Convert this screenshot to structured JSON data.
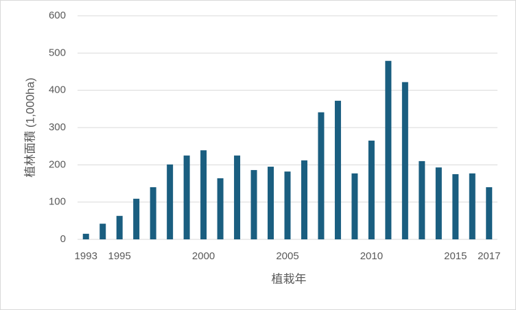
{
  "chart_data": {
    "type": "bar",
    "x_label": "植栽年",
    "y_label": "植林面積 (1,000ha)",
    "categories": [
      "1993",
      null,
      "1995",
      null,
      null,
      null,
      null,
      "2000",
      null,
      null,
      null,
      null,
      "2005",
      null,
      null,
      null,
      null,
      "2010",
      null,
      null,
      null,
      null,
      "2015",
      null,
      "2017"
    ],
    "values": [
      15,
      42,
      63,
      109,
      140,
      201,
      225,
      239,
      164,
      225,
      186,
      195,
      182,
      212,
      341,
      372,
      177,
      265,
      479,
      422,
      210,
      193,
      175,
      177,
      140
    ],
    "color": "#1a5e80",
    "ylim": [
      0,
      600
    ],
    "yticks": [
      0,
      100,
      200,
      300,
      400,
      500,
      600
    ],
    "grid": true
  }
}
